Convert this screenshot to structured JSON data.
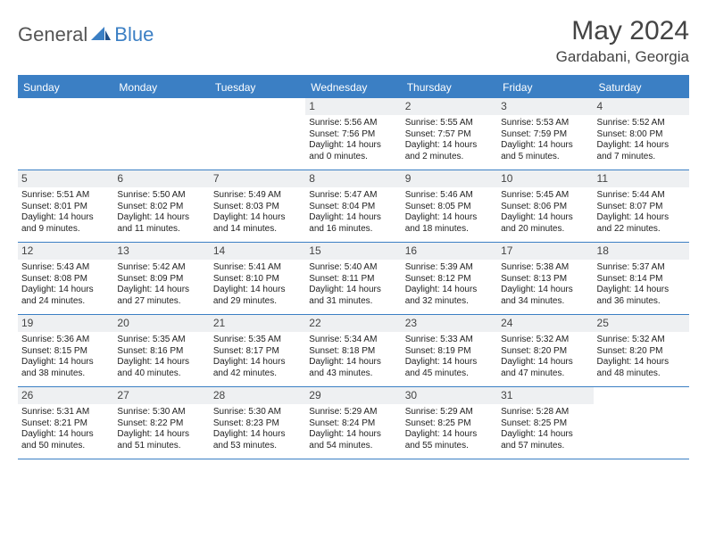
{
  "logo": {
    "part1": "General",
    "part2": "Blue"
  },
  "title": "May 2024",
  "subtitle": "Gardabani, Georgia",
  "colors": {
    "brand": "#3b7fc4",
    "daynum_bg": "#eef0f2",
    "text": "#222222",
    "background": "#ffffff"
  },
  "day_names": [
    "Sunday",
    "Monday",
    "Tuesday",
    "Wednesday",
    "Thursday",
    "Friday",
    "Saturday"
  ],
  "weeks": [
    [
      {
        "empty": true
      },
      {
        "empty": true
      },
      {
        "empty": true
      },
      {
        "day": "1",
        "sunrise": "Sunrise: 5:56 AM",
        "sunset": "Sunset: 7:56 PM",
        "daylight1": "Daylight: 14 hours",
        "daylight2": "and 0 minutes."
      },
      {
        "day": "2",
        "sunrise": "Sunrise: 5:55 AM",
        "sunset": "Sunset: 7:57 PM",
        "daylight1": "Daylight: 14 hours",
        "daylight2": "and 2 minutes."
      },
      {
        "day": "3",
        "sunrise": "Sunrise: 5:53 AM",
        "sunset": "Sunset: 7:59 PM",
        "daylight1": "Daylight: 14 hours",
        "daylight2": "and 5 minutes."
      },
      {
        "day": "4",
        "sunrise": "Sunrise: 5:52 AM",
        "sunset": "Sunset: 8:00 PM",
        "daylight1": "Daylight: 14 hours",
        "daylight2": "and 7 minutes."
      }
    ],
    [
      {
        "day": "5",
        "sunrise": "Sunrise: 5:51 AM",
        "sunset": "Sunset: 8:01 PM",
        "daylight1": "Daylight: 14 hours",
        "daylight2": "and 9 minutes."
      },
      {
        "day": "6",
        "sunrise": "Sunrise: 5:50 AM",
        "sunset": "Sunset: 8:02 PM",
        "daylight1": "Daylight: 14 hours",
        "daylight2": "and 11 minutes."
      },
      {
        "day": "7",
        "sunrise": "Sunrise: 5:49 AM",
        "sunset": "Sunset: 8:03 PM",
        "daylight1": "Daylight: 14 hours",
        "daylight2": "and 14 minutes."
      },
      {
        "day": "8",
        "sunrise": "Sunrise: 5:47 AM",
        "sunset": "Sunset: 8:04 PM",
        "daylight1": "Daylight: 14 hours",
        "daylight2": "and 16 minutes."
      },
      {
        "day": "9",
        "sunrise": "Sunrise: 5:46 AM",
        "sunset": "Sunset: 8:05 PM",
        "daylight1": "Daylight: 14 hours",
        "daylight2": "and 18 minutes."
      },
      {
        "day": "10",
        "sunrise": "Sunrise: 5:45 AM",
        "sunset": "Sunset: 8:06 PM",
        "daylight1": "Daylight: 14 hours",
        "daylight2": "and 20 minutes."
      },
      {
        "day": "11",
        "sunrise": "Sunrise: 5:44 AM",
        "sunset": "Sunset: 8:07 PM",
        "daylight1": "Daylight: 14 hours",
        "daylight2": "and 22 minutes."
      }
    ],
    [
      {
        "day": "12",
        "sunrise": "Sunrise: 5:43 AM",
        "sunset": "Sunset: 8:08 PM",
        "daylight1": "Daylight: 14 hours",
        "daylight2": "and 24 minutes."
      },
      {
        "day": "13",
        "sunrise": "Sunrise: 5:42 AM",
        "sunset": "Sunset: 8:09 PM",
        "daylight1": "Daylight: 14 hours",
        "daylight2": "and 27 minutes."
      },
      {
        "day": "14",
        "sunrise": "Sunrise: 5:41 AM",
        "sunset": "Sunset: 8:10 PM",
        "daylight1": "Daylight: 14 hours",
        "daylight2": "and 29 minutes."
      },
      {
        "day": "15",
        "sunrise": "Sunrise: 5:40 AM",
        "sunset": "Sunset: 8:11 PM",
        "daylight1": "Daylight: 14 hours",
        "daylight2": "and 31 minutes."
      },
      {
        "day": "16",
        "sunrise": "Sunrise: 5:39 AM",
        "sunset": "Sunset: 8:12 PM",
        "daylight1": "Daylight: 14 hours",
        "daylight2": "and 32 minutes."
      },
      {
        "day": "17",
        "sunrise": "Sunrise: 5:38 AM",
        "sunset": "Sunset: 8:13 PM",
        "daylight1": "Daylight: 14 hours",
        "daylight2": "and 34 minutes."
      },
      {
        "day": "18",
        "sunrise": "Sunrise: 5:37 AM",
        "sunset": "Sunset: 8:14 PM",
        "daylight1": "Daylight: 14 hours",
        "daylight2": "and 36 minutes."
      }
    ],
    [
      {
        "day": "19",
        "sunrise": "Sunrise: 5:36 AM",
        "sunset": "Sunset: 8:15 PM",
        "daylight1": "Daylight: 14 hours",
        "daylight2": "and 38 minutes."
      },
      {
        "day": "20",
        "sunrise": "Sunrise: 5:35 AM",
        "sunset": "Sunset: 8:16 PM",
        "daylight1": "Daylight: 14 hours",
        "daylight2": "and 40 minutes."
      },
      {
        "day": "21",
        "sunrise": "Sunrise: 5:35 AM",
        "sunset": "Sunset: 8:17 PM",
        "daylight1": "Daylight: 14 hours",
        "daylight2": "and 42 minutes."
      },
      {
        "day": "22",
        "sunrise": "Sunrise: 5:34 AM",
        "sunset": "Sunset: 8:18 PM",
        "daylight1": "Daylight: 14 hours",
        "daylight2": "and 43 minutes."
      },
      {
        "day": "23",
        "sunrise": "Sunrise: 5:33 AM",
        "sunset": "Sunset: 8:19 PM",
        "daylight1": "Daylight: 14 hours",
        "daylight2": "and 45 minutes."
      },
      {
        "day": "24",
        "sunrise": "Sunrise: 5:32 AM",
        "sunset": "Sunset: 8:20 PM",
        "daylight1": "Daylight: 14 hours",
        "daylight2": "and 47 minutes."
      },
      {
        "day": "25",
        "sunrise": "Sunrise: 5:32 AM",
        "sunset": "Sunset: 8:20 PM",
        "daylight1": "Daylight: 14 hours",
        "daylight2": "and 48 minutes."
      }
    ],
    [
      {
        "day": "26",
        "sunrise": "Sunrise: 5:31 AM",
        "sunset": "Sunset: 8:21 PM",
        "daylight1": "Daylight: 14 hours",
        "daylight2": "and 50 minutes."
      },
      {
        "day": "27",
        "sunrise": "Sunrise: 5:30 AM",
        "sunset": "Sunset: 8:22 PM",
        "daylight1": "Daylight: 14 hours",
        "daylight2": "and 51 minutes."
      },
      {
        "day": "28",
        "sunrise": "Sunrise: 5:30 AM",
        "sunset": "Sunset: 8:23 PM",
        "daylight1": "Daylight: 14 hours",
        "daylight2": "and 53 minutes."
      },
      {
        "day": "29",
        "sunrise": "Sunrise: 5:29 AM",
        "sunset": "Sunset: 8:24 PM",
        "daylight1": "Daylight: 14 hours",
        "daylight2": "and 54 minutes."
      },
      {
        "day": "30",
        "sunrise": "Sunrise: 5:29 AM",
        "sunset": "Sunset: 8:25 PM",
        "daylight1": "Daylight: 14 hours",
        "daylight2": "and 55 minutes."
      },
      {
        "day": "31",
        "sunrise": "Sunrise: 5:28 AM",
        "sunset": "Sunset: 8:25 PM",
        "daylight1": "Daylight: 14 hours",
        "daylight2": "and 57 minutes."
      },
      {
        "empty": true
      }
    ]
  ]
}
